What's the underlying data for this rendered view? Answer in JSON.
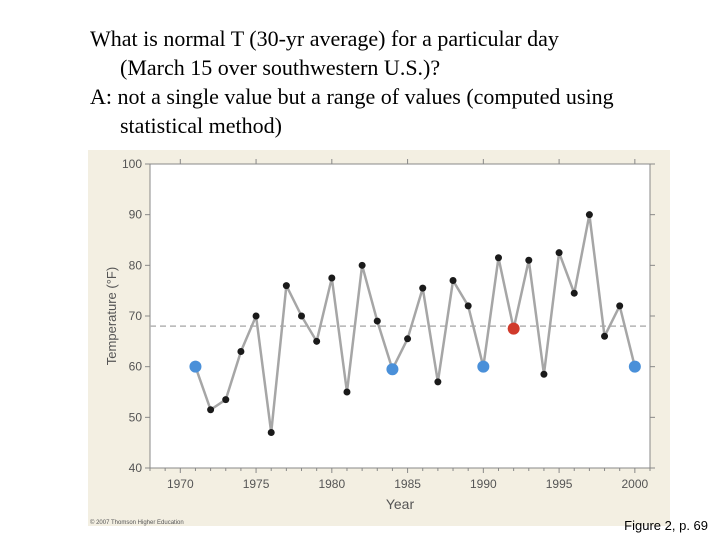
{
  "question": {
    "line1": "What is normal T (30-yr average) for a particular day",
    "line2": "(March 15 over southwestern U.S.)?",
    "line3": "A: not a single value but a range of values (computed using",
    "line4": "statistical method)"
  },
  "copyright": "© 2007 Thomson Higher Education",
  "caption": "Figure 2, p. 69",
  "chart_data": {
    "type": "line",
    "title": "",
    "xlabel": "Year",
    "ylabel": "Temperature (°F)",
    "xlim": [
      1968,
      2001
    ],
    "ylim": [
      40,
      100
    ],
    "xticks": [
      1970,
      1975,
      1980,
      1985,
      1990,
      1995,
      2000
    ],
    "yticks": [
      40,
      50,
      60,
      70,
      80,
      90,
      100
    ],
    "reference_line": {
      "y": 68,
      "style": "dashed"
    },
    "series": [
      {
        "x": [
          1971,
          1972,
          1973,
          1974,
          1975,
          1976,
          1977,
          1978,
          1979,
          1980,
          1981,
          1982,
          1983,
          1984,
          1985,
          1986,
          1987,
          1988,
          1989,
          1990,
          1991,
          1992,
          1993,
          1994,
          1995,
          1996,
          1997,
          1998,
          1999,
          2000
        ],
        "y": [
          60,
          51.5,
          53.5,
          63,
          70,
          47,
          76,
          70,
          65,
          77.5,
          55,
          80,
          69,
          59.5,
          65.5,
          75.5,
          57,
          77,
          72,
          60,
          81.5,
          67.5,
          81,
          58.5,
          82.5,
          74.5,
          90,
          66,
          72,
          60
        ],
        "marker_colors": [
          "blue",
          "black",
          "black",
          "black",
          "black",
          "black",
          "black",
          "black",
          "black",
          "black",
          "black",
          "black",
          "black",
          "blue",
          "black",
          "black",
          "black",
          "black",
          "black",
          "blue",
          "black",
          "red",
          "black",
          "black",
          "black",
          "black",
          "black",
          "black",
          "black",
          "blue"
        ]
      }
    ],
    "colors": {
      "line": "#a6a6a6",
      "point": "#1a1a1a",
      "blue": "#4a90d9",
      "red": "#d03a2b",
      "reference": "#b3b3b3",
      "axis": "#888888",
      "panel": "#f3efe2",
      "plot": "#ffffff"
    }
  }
}
